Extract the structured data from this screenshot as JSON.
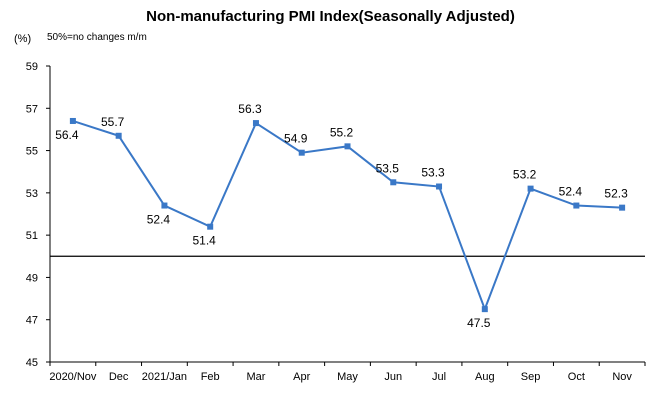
{
  "title": "Non-manufacturing PMI Index(Seasonally Adjusted)",
  "unit_label": "(%)",
  "note": "50%=no changes  m/m",
  "colors": {
    "line": "#3a78c7",
    "marker": "#3a78c7",
    "axis": "#000000",
    "reference": "#000000"
  },
  "chart_data": {
    "type": "line",
    "title": "Non-manufacturing PMI Index(Seasonally Adjusted)",
    "ylabel": "(%)",
    "ylim": [
      45,
      59
    ],
    "yticks": [
      45,
      47,
      49,
      51,
      53,
      55,
      57,
      59
    ],
    "reference_line": 50,
    "grid": false,
    "categories": [
      "2020/Nov",
      "Dec",
      "2021/Jan",
      "Feb",
      "Mar",
      "Apr",
      "May",
      "Jun",
      "Jul",
      "Aug",
      "Sep",
      "Oct",
      "Nov"
    ],
    "series": [
      {
        "values": [
          56.4,
          55.7,
          52.4,
          51.4,
          56.3,
          54.9,
          55.2,
          53.5,
          53.3,
          47.5,
          53.2,
          52.4,
          52.3
        ]
      }
    ],
    "data_labels": [
      "56.4",
      "55.7",
      "52.4",
      "51.4",
      "56.3",
      "54.9",
      "55.2",
      "53.5",
      "53.3",
      "47.5",
      "53.2",
      "52.4",
      "52.3"
    ]
  }
}
